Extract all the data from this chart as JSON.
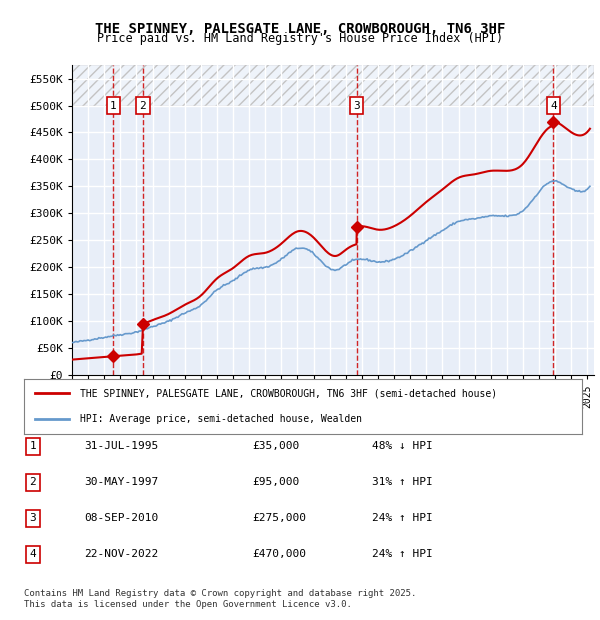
{
  "title": "THE SPINNEY, PALESGATE LANE, CROWBOROUGH, TN6 3HF",
  "subtitle": "Price paid vs. HM Land Registry's House Price Index (HPI)",
  "legend_line1": "THE SPINNEY, PALESGATE LANE, CROWBOROUGH, TN6 3HF (semi-detached house)",
  "legend_line2": "HPI: Average price, semi-detached house, Wealden",
  "footer": "Contains HM Land Registry data © Crown copyright and database right 2025.\nThis data is licensed under the Open Government Licence v3.0.",
  "sales": [
    {
      "num": 1,
      "date": "1995-07-31",
      "price": 35000,
      "label": "31-JUL-1995",
      "pct": "48% ↓ HPI"
    },
    {
      "num": 2,
      "date": "1997-05-30",
      "price": 95000,
      "label": "30-MAY-1997",
      "pct": "31% ↑ HPI"
    },
    {
      "num": 3,
      "date": "2010-09-08",
      "price": 275000,
      "label": "08-SEP-2010",
      "pct": "24% ↑ HPI"
    },
    {
      "num": 4,
      "date": "2022-11-22",
      "price": 470000,
      "label": "22-NOV-2022",
      "pct": "24% ↑ HPI"
    }
  ],
  "ylim": [
    0,
    575000
  ],
  "hatch_above": 500000,
  "red_color": "#cc0000",
  "blue_color": "#6699cc",
  "background_plot": "#e8eef8",
  "grid_color": "#ffffff"
}
